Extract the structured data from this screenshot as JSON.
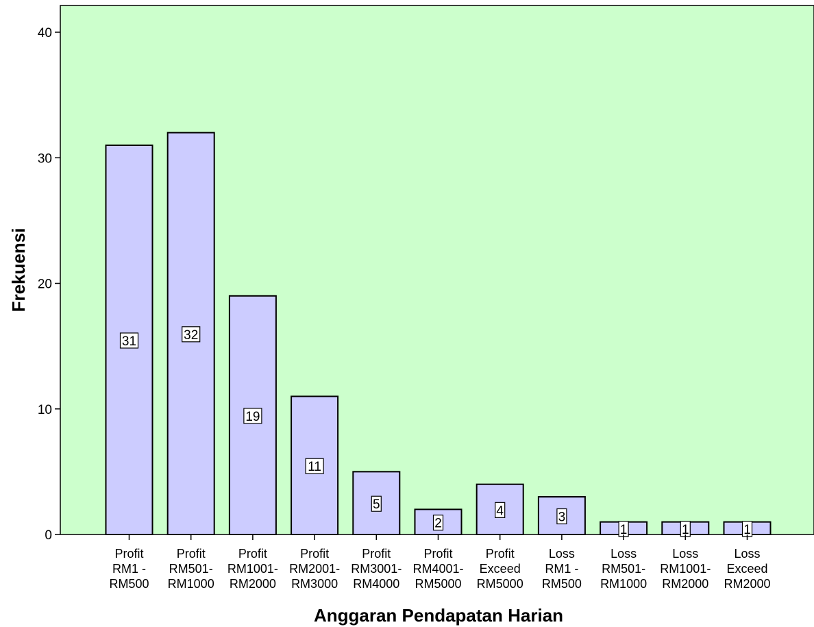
{
  "chart_data": {
    "type": "bar",
    "categories": [
      [
        "Profit",
        "RM1 -",
        "RM500"
      ],
      [
        "Profit",
        "RM501-",
        "RM1000"
      ],
      [
        "Profit",
        "RM1001-",
        "RM2000"
      ],
      [
        "Profit",
        "RM2001-",
        "RM3000"
      ],
      [
        "Profit",
        "RM3001-",
        "RM4000"
      ],
      [
        "Profit",
        "RM4001-",
        "RM5000"
      ],
      [
        "Profit",
        "Exceed",
        "RM5000"
      ],
      [
        "Loss",
        "RM1 -",
        "RM500"
      ],
      [
        "Loss",
        "RM501-",
        "RM1000"
      ],
      [
        "Loss",
        "RM1001-",
        "RM2000"
      ],
      [
        "Loss",
        "Exceed",
        "RM2000"
      ]
    ],
    "values": [
      31,
      32,
      19,
      11,
      5,
      2,
      4,
      3,
      1,
      1,
      1
    ],
    "data_labels": [
      "31",
      "32",
      "19",
      "11",
      "5",
      "2",
      "4",
      "3",
      "1",
      "1",
      "1"
    ],
    "xlabel": "Anggaran Pendapatan Harian",
    "ylabel": "Frekuensi",
    "ylim": [
      0,
      42
    ],
    "yticks": [
      0,
      10,
      20,
      30,
      40
    ],
    "grid": false,
    "colors": {
      "plot_background": "#ccffcc",
      "bar_fill": "#ccccff",
      "bar_stroke": "#000000"
    }
  }
}
